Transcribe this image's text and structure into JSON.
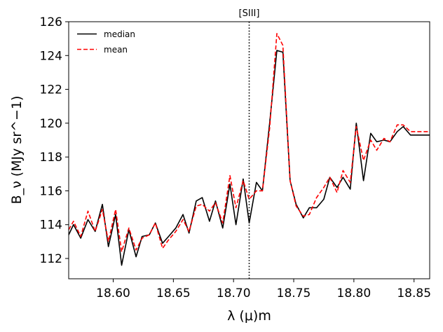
{
  "chart_data": {
    "type": "line",
    "title": "",
    "xlabel": "λ (μ)m",
    "ylabel": "B_ν (MJy sr^−1)",
    "xlim": [
      18.563,
      18.863
    ],
    "ylim": [
      110.8,
      126.0
    ],
    "x_ticks": [
      18.6,
      18.65,
      18.7,
      18.75,
      18.8,
      18.85
    ],
    "x_tick_labels": [
      "18.60",
      "18.65",
      "18.70",
      "18.75",
      "18.80",
      "18.85"
    ],
    "y_ticks": [
      112,
      114,
      116,
      118,
      120,
      122,
      124,
      126
    ],
    "y_tick_labels": [
      "112",
      "114",
      "116",
      "118",
      "120",
      "122",
      "124",
      "126"
    ],
    "grid": false,
    "legend_position": "top-left",
    "annotations": [
      {
        "text": "[SIII]",
        "x": 18.713,
        "style": "dotted vertical line"
      }
    ],
    "series": [
      {
        "name": "median",
        "color": "#000000",
        "linestyle": "solid",
        "x": [
          18.563,
          18.567,
          18.573,
          18.579,
          18.585,
          18.591,
          18.596,
          18.602,
          18.607,
          18.613,
          18.619,
          18.624,
          18.63,
          18.635,
          18.641,
          18.646,
          18.652,
          18.658,
          18.663,
          18.669,
          18.674,
          18.68,
          18.685,
          18.691,
          18.697,
          18.702,
          18.708,
          18.713,
          18.719,
          18.724,
          18.73,
          18.736,
          18.741,
          18.747,
          18.752,
          18.758,
          18.763,
          18.769,
          18.775,
          18.78,
          18.786,
          18.791,
          18.797,
          18.802,
          18.808,
          18.814,
          18.819,
          18.825,
          18.83,
          18.836,
          18.841,
          18.847,
          18.853,
          18.858,
          18.863
        ],
        "y": [
          113.4,
          114.0,
          113.2,
          114.3,
          113.6,
          115.2,
          112.7,
          114.6,
          111.6,
          113.7,
          112.1,
          113.3,
          113.4,
          114.1,
          112.9,
          113.3,
          113.8,
          114.6,
          113.5,
          115.4,
          115.6,
          114.2,
          115.4,
          113.8,
          116.4,
          114.0,
          116.7,
          114.1,
          116.5,
          116.0,
          120.0,
          124.3,
          124.2,
          116.6,
          115.2,
          114.4,
          115.0,
          115.0,
          115.5,
          116.8,
          116.2,
          116.8,
          116.1,
          120.0,
          116.6,
          119.4,
          118.9,
          119.0,
          118.9,
          119.5,
          119.8,
          119.3,
          119.3,
          119.3,
          119.3
        ]
      },
      {
        "name": "mean",
        "color": "#ff0000",
        "linestyle": "dashed",
        "x": [
          18.563,
          18.567,
          18.573,
          18.579,
          18.585,
          18.591,
          18.596,
          18.602,
          18.607,
          18.613,
          18.619,
          18.624,
          18.63,
          18.635,
          18.641,
          18.646,
          18.652,
          18.658,
          18.663,
          18.669,
          18.674,
          18.68,
          18.685,
          18.691,
          18.697,
          18.702,
          18.708,
          18.713,
          18.719,
          18.724,
          18.73,
          18.736,
          18.741,
          18.747,
          18.752,
          18.758,
          18.763,
          18.769,
          18.775,
          18.78,
          18.786,
          18.791,
          18.797,
          18.802,
          18.808,
          18.814,
          18.819,
          18.825,
          18.83,
          18.836,
          18.841,
          18.847,
          18.853,
          18.858,
          18.863
        ],
        "y": [
          113.7,
          114.2,
          113.3,
          114.8,
          113.6,
          114.9,
          113.0,
          114.9,
          112.4,
          113.8,
          112.5,
          113.2,
          113.4,
          114.1,
          112.6,
          113.1,
          113.6,
          114.3,
          113.6,
          115.1,
          115.2,
          114.8,
          115.3,
          114.1,
          116.9,
          115.0,
          116.6,
          115.5,
          116.0,
          116.0,
          119.7,
          125.3,
          124.6,
          116.6,
          115.1,
          114.5,
          114.6,
          115.6,
          116.2,
          116.8,
          115.9,
          117.2,
          116.5,
          119.8,
          117.8,
          119.0,
          118.4,
          119.1,
          118.9,
          119.9,
          119.9,
          119.5,
          119.5,
          119.5,
          119.5
        ]
      }
    ]
  }
}
